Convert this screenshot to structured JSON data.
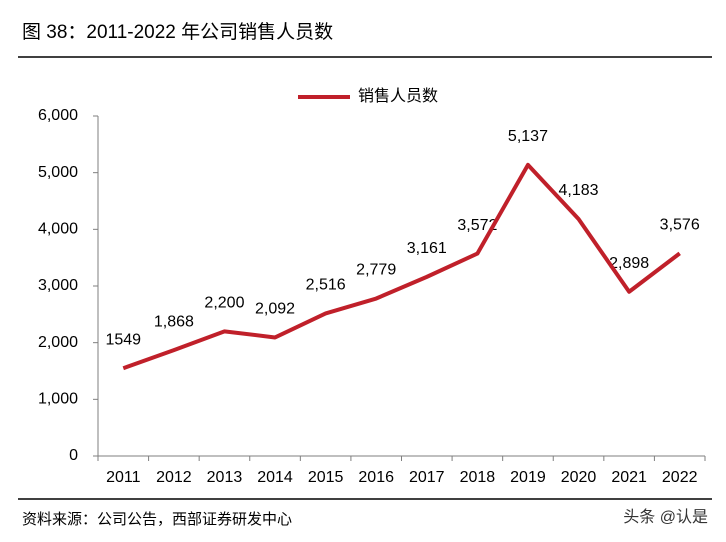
{
  "header": {
    "title": "图 38：2011-2022 年公司销售人员数"
  },
  "chart_data": {
    "type": "line",
    "categories": [
      "2011",
      "2012",
      "2013",
      "2014",
      "2015",
      "2016",
      "2017",
      "2018",
      "2019",
      "2020",
      "2021",
      "2022"
    ],
    "series": [
      {
        "name": "销售人员数",
        "color": "#c0202a",
        "values": [
          1549,
          1868,
          2200,
          2092,
          2516,
          2779,
          3161,
          3572,
          5137,
          4183,
          2898,
          3576
        ],
        "value_labels": [
          "1549",
          "1,868",
          "2,200",
          "2,092",
          "2,516",
          "2,779",
          "3,161",
          "3,572",
          "5,137",
          "4,183",
          "2,898",
          "3,576"
        ]
      }
    ],
    "ylim": [
      0,
      6000
    ],
    "yticks": [
      0,
      {
        "value": 1000,
        "label": "1,000"
      },
      {
        "value": 2000,
        "label": "2,000"
      },
      {
        "value": 3000,
        "label": "3,000"
      },
      {
        "value": 4000,
        "label": "4,000"
      },
      {
        "value": 5000,
        "label": "5,000"
      },
      {
        "value": 6000,
        "label": "6,000"
      }
    ],
    "legend": "top"
  },
  "footer": {
    "source": "资料来源：公司公告，西部证券研发中心",
    "watermark": "头条 @认是"
  }
}
